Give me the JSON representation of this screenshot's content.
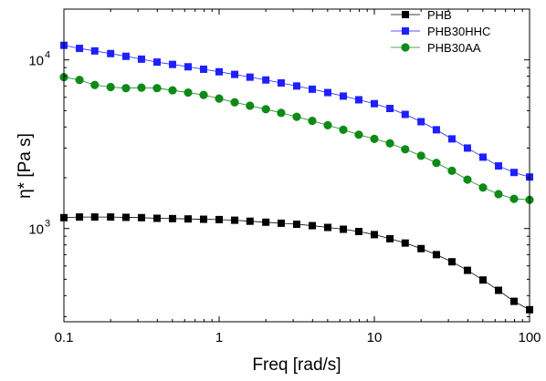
{
  "chart_data": {
    "type": "scatter",
    "xlabel": "Freq [rad/s]",
    "ylabel_base": "η* [Pa s]",
    "x_scale": "log",
    "y_scale": "log",
    "xlim": [
      0.1,
      100
    ],
    "ylim": [
      280,
      20000
    ],
    "x_ticks": [
      {
        "value": 0.1,
        "label": "0.1"
      },
      {
        "value": 1,
        "label": "1"
      },
      {
        "value": 10,
        "label": "10"
      },
      {
        "value": 100,
        "label": "100"
      }
    ],
    "y_ticks": [
      {
        "value": 1000,
        "base": "10",
        "exp": "3"
      },
      {
        "value": 10000,
        "base": "10",
        "exp": "4"
      }
    ],
    "legend_position": "top-right",
    "grid": false,
    "x": [
      0.1,
      0.126,
      0.158,
      0.2,
      0.251,
      0.316,
      0.398,
      0.501,
      0.631,
      0.794,
      1,
      1.26,
      1.58,
      2,
      2.51,
      3.16,
      3.98,
      5.01,
      6.31,
      7.94,
      10,
      12.6,
      15.8,
      20,
      25.1,
      31.6,
      39.8,
      50.1,
      63.1,
      79.4,
      100
    ],
    "series": [
      {
        "name": "PHB",
        "color": "#000000",
        "marker": "square",
        "values": [
          1160,
          1170,
          1170,
          1170,
          1165,
          1160,
          1150,
          1145,
          1140,
          1135,
          1130,
          1120,
          1105,
          1090,
          1075,
          1060,
          1040,
          1015,
          990,
          960,
          920,
          870,
          820,
          760,
          700,
          635,
          565,
          495,
          430,
          370,
          330
        ]
      },
      {
        "name": "PHB30HHC",
        "color": "#1f1fff",
        "marker": "square",
        "values": [
          12200,
          11700,
          11300,
          10900,
          10500,
          10100,
          9700,
          9400,
          9100,
          8800,
          8500,
          8200,
          7900,
          7600,
          7300,
          7000,
          6700,
          6400,
          6100,
          5800,
          5500,
          5150,
          4750,
          4300,
          3850,
          3400,
          3000,
          2650,
          2350,
          2150,
          2020
        ]
      },
      {
        "name": "PHB30AA",
        "color": "#0e8a16",
        "marker": "circle",
        "values": [
          7900,
          7600,
          7100,
          6900,
          6800,
          6850,
          6800,
          6600,
          6400,
          6200,
          5900,
          5600,
          5350,
          5100,
          4850,
          4600,
          4350,
          4100,
          3850,
          3600,
          3400,
          3200,
          2950,
          2700,
          2450,
          2200,
          1950,
          1750,
          1600,
          1500,
          1480
        ]
      }
    ]
  }
}
